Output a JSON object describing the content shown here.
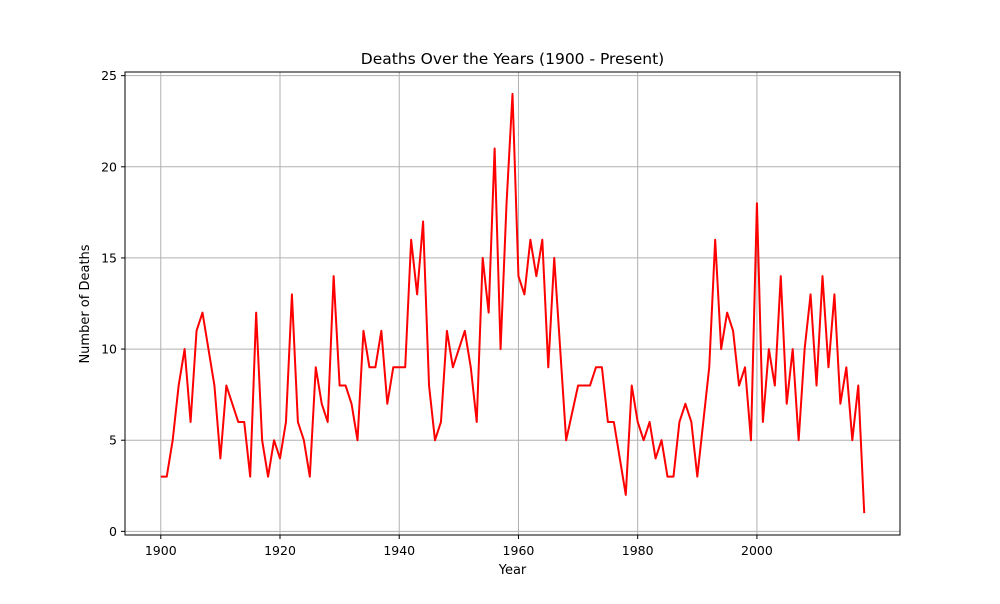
{
  "chart_data": {
    "type": "line",
    "title": "Deaths Over the Years (1900 - Present)",
    "xlabel": "Year",
    "ylabel": "Number of Deaths",
    "xlim": [
      1894,
      2024
    ],
    "ylim": [
      -0.2,
      25.2
    ],
    "xticks": [
      1900,
      1920,
      1940,
      1960,
      1980,
      2000
    ],
    "yticks": [
      0,
      5,
      10,
      15,
      20,
      25
    ],
    "grid": true,
    "series": [
      {
        "color": "#ff0000",
        "x": [
          1900,
          1901,
          1902,
          1903,
          1904,
          1905,
          1906,
          1907,
          1908,
          1909,
          1910,
          1911,
          1912,
          1913,
          1914,
          1915,
          1916,
          1917,
          1918,
          1919,
          1920,
          1921,
          1922,
          1923,
          1924,
          1925,
          1926,
          1927,
          1928,
          1929,
          1930,
          1931,
          1932,
          1933,
          1934,
          1935,
          1936,
          1937,
          1938,
          1939,
          1940,
          1941,
          1942,
          1943,
          1944,
          1945,
          1946,
          1947,
          1948,
          1949,
          1950,
          1951,
          1952,
          1953,
          1954,
          1955,
          1956,
          1957,
          1958,
          1959,
          1960,
          1961,
          1962,
          1963,
          1964,
          1965,
          1966,
          1967,
          1968,
          1969,
          1970,
          1971,
          1972,
          1973,
          1974,
          1975,
          1976,
          1977,
          1978,
          1979,
          1980,
          1981,
          1982,
          1983,
          1984,
          1985,
          1986,
          1987,
          1988,
          1989,
          1990,
          1991,
          1992,
          1993,
          1994,
          1995,
          1996,
          1997,
          1998,
          1999,
          2000,
          2001,
          2002,
          2003,
          2004,
          2005,
          2006,
          2007,
          2008,
          2009,
          2010,
          2011,
          2012,
          2013,
          2014,
          2015,
          2016,
          2017,
          2018
        ],
        "values": [
          3,
          3,
          5,
          8,
          10,
          6,
          11,
          12,
          10,
          8,
          4,
          8,
          7,
          6,
          6,
          3,
          12,
          5,
          3,
          5,
          4,
          6,
          13,
          6,
          5,
          3,
          9,
          7,
          6,
          14,
          8,
          8,
          7,
          5,
          11,
          9,
          9,
          11,
          7,
          9,
          9,
          9,
          16,
          13,
          17,
          8,
          5,
          6,
          11,
          9,
          10,
          11,
          9,
          6,
          15,
          12,
          21,
          10,
          18,
          24,
          14,
          13,
          16,
          14,
          16,
          9,
          15,
          10,
          5,
          6.5,
          8,
          8,
          8,
          9,
          9,
          6,
          6,
          4,
          2,
          8,
          6,
          5,
          6,
          4,
          5,
          3,
          3,
          6,
          7,
          6,
          3,
          6,
          9,
          16,
          10,
          12,
          11,
          8,
          9,
          5,
          18,
          6,
          10,
          8,
          14,
          7,
          10,
          5,
          10,
          13,
          8,
          14,
          9,
          13,
          7,
          9,
          5,
          8,
          1
        ]
      }
    ]
  }
}
